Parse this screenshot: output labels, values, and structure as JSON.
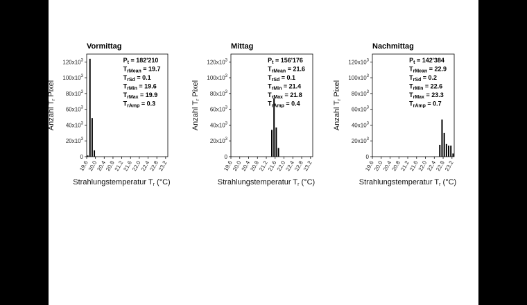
{
  "chart_data": [
    {
      "type": "bar",
      "title": "Vormittag",
      "ylabel": "Anzahl T_r Pixel",
      "ylim": [
        0,
        130000
      ],
      "yticks": [
        0,
        20000,
        40000,
        60000,
        80000,
        100000,
        120000
      ],
      "ytick_labels": [
        "0",
        "20x10^3",
        "40x10^3",
        "60x10^3",
        "80x10^3",
        "100x10^3",
        "120x10^3"
      ],
      "xlim": [
        19.6,
        23.3
      ],
      "xticks": [
        "19.6",
        "20.0",
        "20.4",
        "20.8",
        "21.2",
        "21.6",
        "22.0",
        "22.4",
        "22.8",
        "23.2"
      ],
      "bin_width": 0.1,
      "bins": [
        19.6,
        19.7,
        19.8,
        19.9
      ],
      "values": [
        1500,
        124000,
        49000,
        8000
      ],
      "stats": [
        {
          "sym": "P",
          "sub": "t",
          "val": " = 182'210"
        },
        {
          "sym": "T",
          "sub": "rMean",
          "val": " = 19.7"
        },
        {
          "sym": "T",
          "sub": "rSd",
          "val": " = 0.1"
        },
        {
          "sym": "T",
          "sub": "rMin",
          "val": " = 19.6"
        },
        {
          "sym": "T",
          "sub": "rMax",
          "val": " = 19.9"
        },
        {
          "sym": "T",
          "sub": "rAmp",
          "val": " = 0.3"
        }
      ]
    },
    {
      "type": "bar",
      "title": "Mittag",
      "ylabel": "Anzahl T_r Pixel",
      "ylim": [
        0,
        130000
      ],
      "yticks": [
        0,
        20000,
        40000,
        60000,
        80000,
        100000,
        120000
      ],
      "ytick_labels": [
        "0",
        "20x10^3",
        "40x10^3",
        "60x10^3",
        "80x10^3",
        "100x10^3",
        "120x10^3"
      ],
      "xlim": [
        19.6,
        23.3
      ],
      "xticks": [
        "19.6",
        "20.0",
        "20.4",
        "20.8",
        "21.2",
        "21.6",
        "22.0",
        "22.4",
        "22.8",
        "23.2"
      ],
      "bin_width": 0.1,
      "bins": [
        21.4,
        21.5,
        21.6,
        21.7
      ],
      "values": [
        34000,
        74000,
        37000,
        11000
      ],
      "stats": [
        {
          "sym": "P",
          "sub": "t",
          "val": " = 156'176"
        },
        {
          "sym": "T",
          "sub": "rMean",
          "val": " = 21.6"
        },
        {
          "sym": "T",
          "sub": "rSd",
          "val": " = 0.1"
        },
        {
          "sym": "T",
          "sub": "rMin",
          "val": " = 21.4"
        },
        {
          "sym": "T",
          "sub": "rMax",
          "val": " = 21.8"
        },
        {
          "sym": "T",
          "sub": "rAmp",
          "val": " = 0.4"
        }
      ]
    },
    {
      "type": "bar",
      "title": "Nachmittag",
      "ylabel": "Anzahl T_r Pixel",
      "ylim": [
        0,
        130000
      ],
      "yticks": [
        0,
        20000,
        40000,
        60000,
        80000,
        100000,
        120000
      ],
      "ytick_labels": [
        "0",
        "20x10^3",
        "40x10^3",
        "60x10^3",
        "80x10^3",
        "100x10^3",
        "120x10^3"
      ],
      "xlim": [
        19.6,
        23.3
      ],
      "xticks": [
        "19.6",
        "20.0",
        "20.4",
        "20.8",
        "21.2",
        "21.6",
        "22.0",
        "22.4",
        "22.8",
        "23.2"
      ],
      "bin_width": 0.1,
      "bins": [
        22.6,
        22.7,
        22.8,
        22.9,
        23.0,
        23.1,
        23.2
      ],
      "values": [
        15000,
        47000,
        30000,
        16000,
        14000,
        14000,
        4000
      ],
      "stats": [
        {
          "sym": "P",
          "sub": "t",
          "val": " = 142'384"
        },
        {
          "sym": "T",
          "sub": "rMean",
          "val": " = 22.9"
        },
        {
          "sym": "T",
          "sub": "rSd",
          "val": " = 0.2"
        },
        {
          "sym": "T",
          "sub": "rMin",
          "val": " = 22.6"
        },
        {
          "sym": "T",
          "sub": "rMax",
          "val": " = 23.3"
        },
        {
          "sym": "T",
          "sub": "rAmp",
          "val": " = 0.7"
        }
      ]
    }
  ],
  "shared_xlabel": {
    "text": "Strahlungstemperatur T",
    "sub": "r",
    "unit": " (°C)"
  },
  "ylabel_parts": {
    "text": "Anzahl T",
    "sub": "r",
    "rest": " Pixel"
  },
  "colors": {
    "bars": "#000000",
    "background_letterbox": "#000000",
    "panel_background": "#ffffff"
  }
}
